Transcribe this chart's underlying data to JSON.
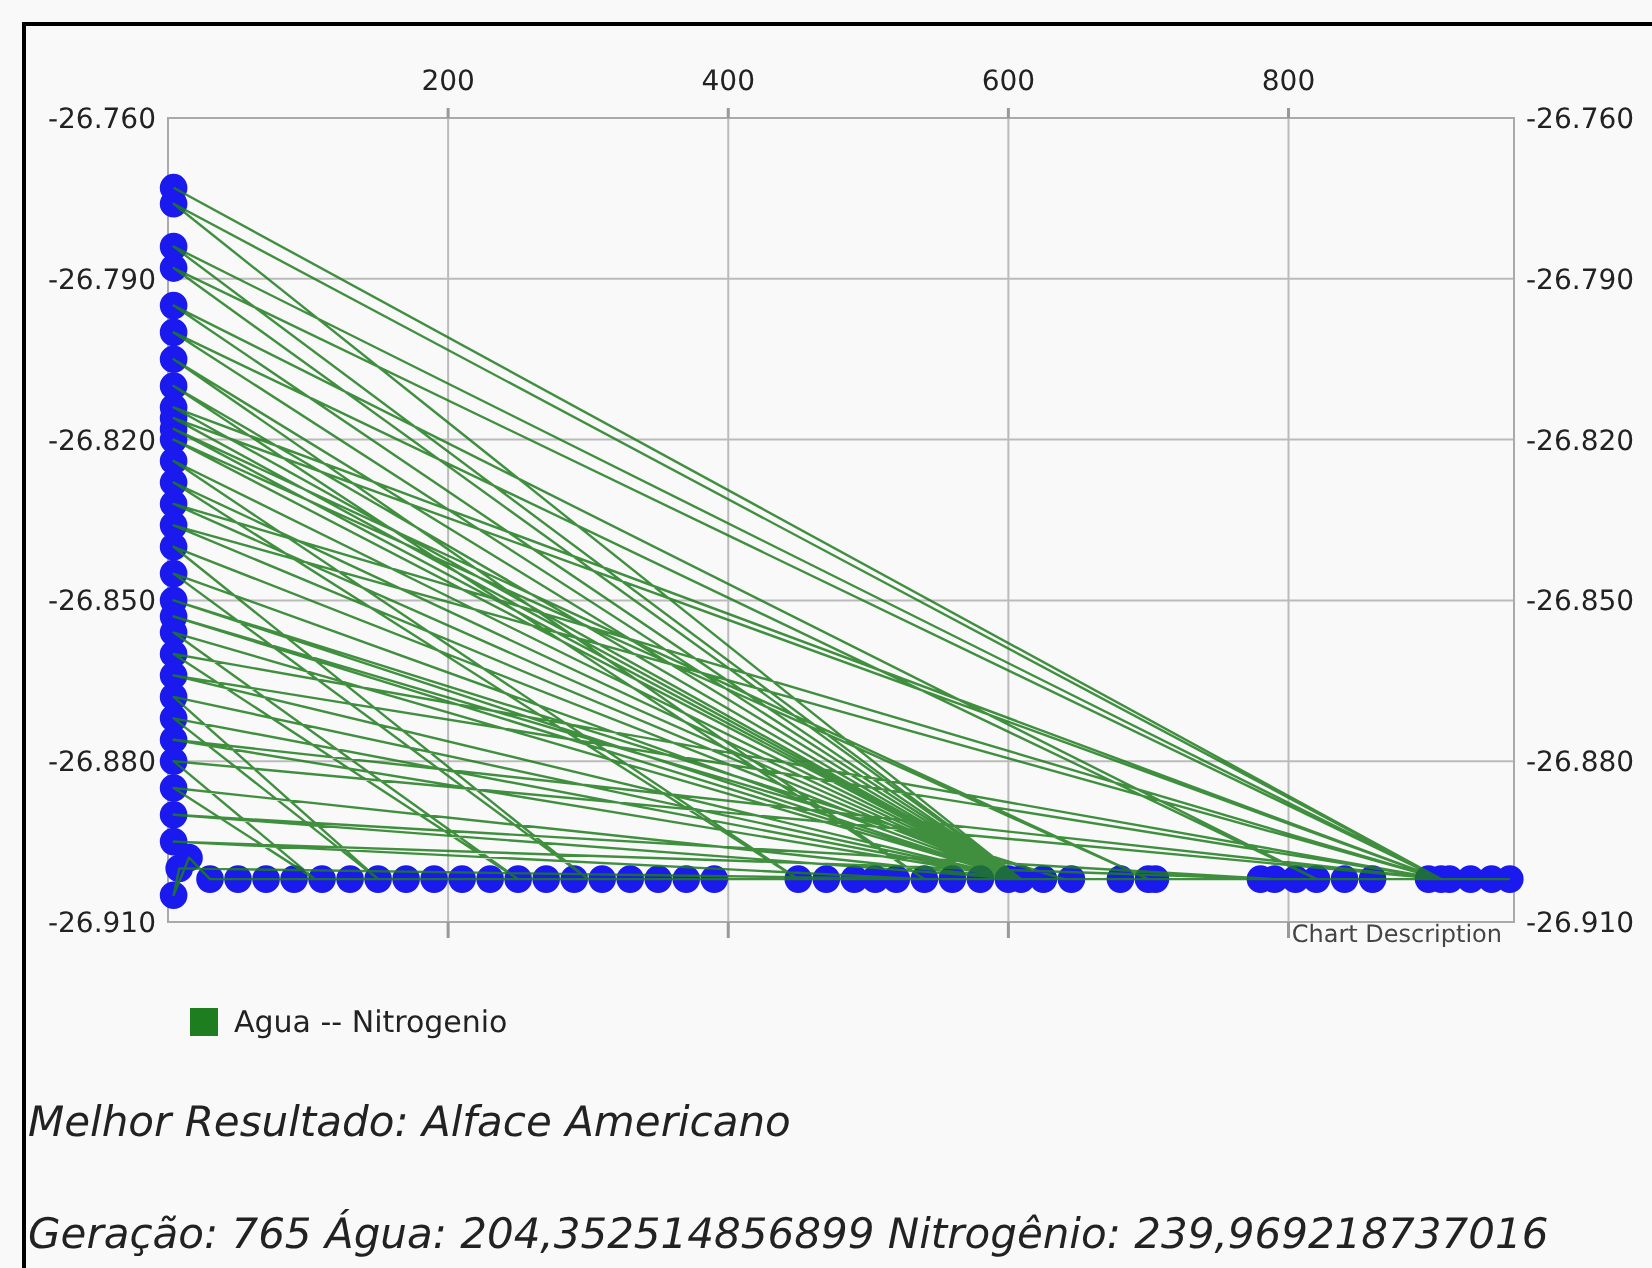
{
  "chart_data": {
    "type": "line",
    "xlim": [
      0,
      961
    ],
    "xticks": [
      200,
      400,
      600,
      800
    ],
    "ylim": [
      -26.91,
      -26.76
    ],
    "yticks": [
      {
        "value": -26.91,
        "label": "-26.910"
      },
      {
        "value": -26.88,
        "label": "-26.880"
      },
      {
        "value": -26.85,
        "label": "-26.850"
      },
      {
        "value": -26.82,
        "label": "-26.820"
      },
      {
        "value": -26.79,
        "label": "-26.790"
      },
      {
        "value": -26.76,
        "label": "-26.760"
      }
    ],
    "y2lim": [
      -26.91,
      -26.76
    ],
    "y2ticks": [
      {
        "value": -26.91,
        "label": "-26.910"
      },
      {
        "value": -26.88,
        "label": "-26.880"
      },
      {
        "value": -26.85,
        "label": "-26.850"
      },
      {
        "value": -26.82,
        "label": "-26.820"
      },
      {
        "value": -26.79,
        "label": "-26.790"
      },
      {
        "value": -26.76,
        "label": "-26.760"
      }
    ],
    "grid": true,
    "legend": "bottom left",
    "annotations": [
      "Chart Description",
      "Melhor Resultado: Alface Americano",
      "Geração: 765 Água: 204,352514856899 Nitrogênio: 239,969218737016"
    ],
    "series": [
      {
        "type": "scatter",
        "color": "#1a1aee",
        "marker": "circle",
        "x": [
          4,
          4,
          4,
          4,
          4,
          4,
          4,
          4,
          4,
          4,
          4,
          4,
          4,
          4,
          4,
          4,
          4,
          4,
          4,
          4,
          4,
          4,
          4,
          4,
          4,
          4,
          4,
          4,
          4,
          4,
          8,
          4,
          15,
          30,
          50,
          70,
          90,
          110,
          130,
          150,
          170,
          190,
          210,
          230,
          250,
          270,
          290,
          310,
          330,
          350,
          370,
          390,
          470,
          490,
          505,
          520,
          540,
          560,
          580,
          600,
          625,
          645,
          680,
          705,
          780,
          805,
          840,
          860,
          900,
          915,
          930,
          945,
          958,
          909,
          609,
          820,
          700,
          450,
          790
        ],
        "values": [
          -26.773,
          -26.776,
          -26.784,
          -26.788,
          -26.795,
          -26.8,
          -26.805,
          -26.81,
          -26.814,
          -26.816,
          -26.818,
          -26.82,
          -26.824,
          -26.828,
          -26.832,
          -26.836,
          -26.84,
          -26.845,
          -26.85,
          -26.853,
          -26.856,
          -26.86,
          -26.864,
          -26.868,
          -26.872,
          -26.876,
          -26.88,
          -26.885,
          -26.89,
          -26.895,
          -26.9,
          -26.905,
          -26.898,
          -26.902,
          -26.902,
          -26.902,
          -26.902,
          -26.902,
          -26.902,
          -26.902,
          -26.902,
          -26.902,
          -26.902,
          -26.902,
          -26.902,
          -26.902,
          -26.902,
          -26.902,
          -26.902,
          -26.902,
          -26.902,
          -26.902,
          -26.902,
          -26.902,
          -26.902,
          -26.902,
          -26.902,
          -26.902,
          -26.902,
          -26.902,
          -26.902,
          -26.902,
          -26.902,
          -26.902,
          -26.902,
          -26.902,
          -26.902,
          -26.902,
          -26.902,
          -26.902,
          -26.902,
          -26.902,
          -26.902,
          -26.902,
          -26.902,
          -26.902,
          -26.902,
          -26.902,
          -26.902
        ]
      },
      {
        "name": "Agua -- Nitrogenio",
        "color": "#1e7d1e",
        "marker": "none",
        "x": [
          4,
          909,
          4,
          609,
          4,
          909,
          4,
          609,
          4,
          820,
          4,
          609,
          4,
          540,
          4,
          609,
          4,
          909,
          4,
          609,
          4,
          700,
          4,
          609,
          4,
          450,
          4,
          609,
          4,
          909,
          4,
          609,
          4,
          300,
          4,
          609,
          4,
          640,
          4,
          609,
          4,
          250,
          4,
          909,
          4,
          609,
          4,
          150,
          4,
          609,
          4,
          909,
          4,
          105,
          4,
          609,
          4,
          790,
          4,
          540,
          8,
          4,
          15,
          30,
          50,
          70,
          90,
          110,
          130,
          150,
          170,
          190,
          210,
          230,
          250,
          270,
          290,
          310,
          330,
          350,
          370,
          390,
          470,
          490,
          505,
          520,
          540,
          560,
          580,
          600,
          625,
          645,
          680,
          705,
          780,
          805,
          840,
          860,
          900,
          915,
          930,
          945,
          958
        ],
        "values": [
          -26.773,
          -26.902,
          -26.776,
          -26.902,
          -26.784,
          -26.902,
          -26.788,
          -26.902,
          -26.795,
          -26.902,
          -26.8,
          -26.902,
          -26.805,
          -26.902,
          -26.81,
          -26.902,
          -26.814,
          -26.902,
          -26.816,
          -26.902,
          -26.818,
          -26.902,
          -26.82,
          -26.902,
          -26.824,
          -26.902,
          -26.828,
          -26.902,
          -26.832,
          -26.902,
          -26.836,
          -26.902,
          -26.84,
          -26.902,
          -26.845,
          -26.902,
          -26.85,
          -26.902,
          -26.853,
          -26.902,
          -26.856,
          -26.902,
          -26.86,
          -26.902,
          -26.864,
          -26.902,
          -26.868,
          -26.902,
          -26.872,
          -26.902,
          -26.876,
          -26.902,
          -26.88,
          -26.902,
          -26.885,
          -26.902,
          -26.89,
          -26.902,
          -26.895,
          -26.902,
          -26.9,
          -26.905,
          -26.898,
          -26.902,
          -26.902,
          -26.902,
          -26.902,
          -26.902,
          -26.902,
          -26.902,
          -26.902,
          -26.902,
          -26.902,
          -26.902,
          -26.902,
          -26.902,
          -26.902,
          -26.902,
          -26.902,
          -26.902,
          -26.902,
          -26.902,
          -26.902,
          -26.902,
          -26.902,
          -26.902,
          -26.902,
          -26.902,
          -26.902,
          -26.902,
          -26.902,
          -26.902,
          -26.902,
          -26.902,
          -26.902,
          -26.902,
          -26.902,
          -26.902,
          -26.902,
          -26.902,
          -26.902,
          -26.902,
          -26.902
        ]
      }
    ]
  }
}
